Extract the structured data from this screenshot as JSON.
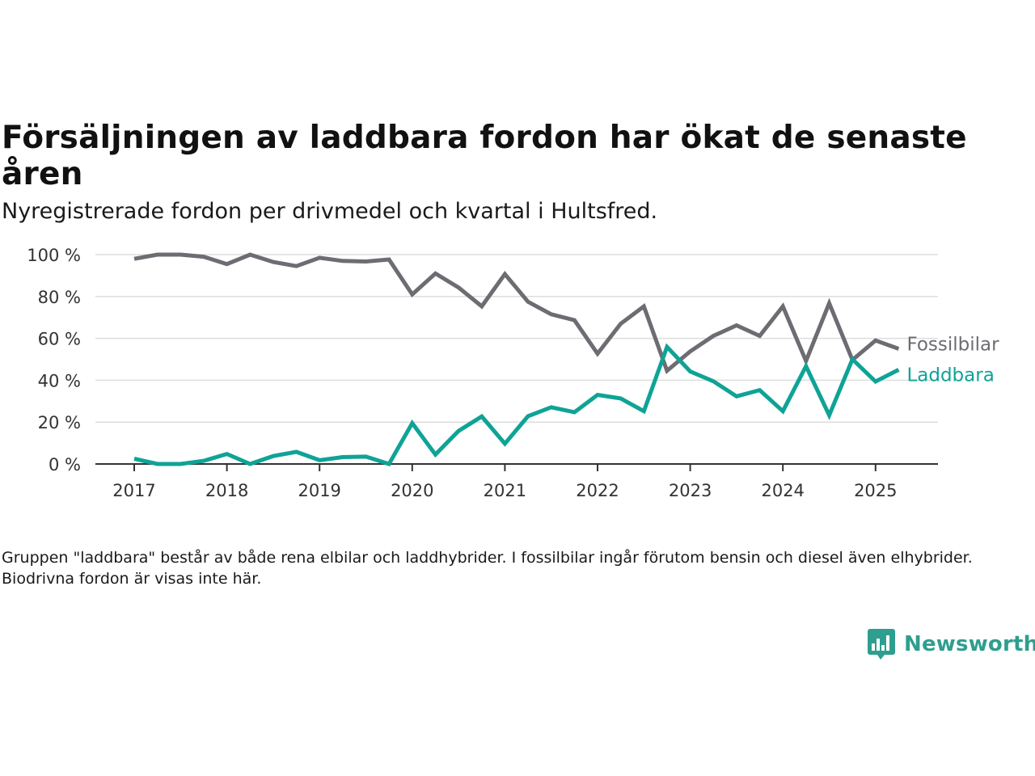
{
  "title": "Försäljningen av laddbara fordon har ökat de senaste åren",
  "subtitle": "Nyregistrerade fordon per drivmedel och kvartal i Hultsfred.",
  "footnote": "Gruppen \"laddbara\" består av både rena elbilar och laddhybrider. I fossilbilar ingår förutom bensin och diesel även elhybrider. Biodrivna fordon är visas inte här.",
  "brand": {
    "name": "Newsworthy",
    "icon": "newsworthy-logo-icon",
    "color": "#2e9e8f"
  },
  "colors": {
    "Fossilbilar": "#6e6c72",
    "Laddbara": "#0fa396",
    "grid": "#dddddd",
    "axis": "#333333"
  },
  "chart_data": {
    "type": "line",
    "x_label_format": "year",
    "x_ticks": [
      "2017",
      "2018",
      "2019",
      "2020",
      "2021",
      "2022",
      "2023",
      "2024",
      "2025"
    ],
    "y_ticks": [
      "0 %",
      "20 %",
      "40 %",
      "60 %",
      "80 %",
      "100 %"
    ],
    "ylim": [
      0,
      100
    ],
    "grid": true,
    "legend": "inline-right",
    "x": [
      "2017-Q1",
      "2017-Q2",
      "2017-Q3",
      "2017-Q4",
      "2018-Q1",
      "2018-Q2",
      "2018-Q3",
      "2018-Q4",
      "2019-Q1",
      "2019-Q2",
      "2019-Q3",
      "2019-Q4",
      "2020-Q1",
      "2020-Q2",
      "2020-Q3",
      "2020-Q4",
      "2021-Q1",
      "2021-Q2",
      "2021-Q3",
      "2021-Q4",
      "2022-Q1",
      "2022-Q2",
      "2022-Q3",
      "2022-Q4",
      "2023-Q1",
      "2023-Q2",
      "2023-Q3",
      "2023-Q4",
      "2024-Q1",
      "2024-Q2",
      "2024-Q3",
      "2024-Q4",
      "2025-Q1",
      "2025-Q2"
    ],
    "series": [
      {
        "name": "Fossilbilar",
        "values": [
          98,
          100,
          100,
          99,
          95.5,
          100,
          96.5,
          94.5,
          98.5,
          97,
          96.7,
          97.7,
          81,
          91,
          84.3,
          75.3,
          90.7,
          77.5,
          71.5,
          68.7,
          52.7,
          67,
          75.3,
          44.5,
          53.8,
          61.2,
          66.2,
          61.2,
          75.3,
          49.2,
          76.8,
          49.7,
          59,
          55
        ]
      },
      {
        "name": "Laddbara",
        "values": [
          2.5,
          0,
          0,
          1.5,
          4.8,
          0,
          3.8,
          5.8,
          1.8,
          3.3,
          3.5,
          0,
          19.5,
          4.5,
          15.8,
          22.7,
          9.7,
          22.8,
          27.1,
          24.7,
          33,
          31.3,
          25.2,
          55.9,
          44.2,
          39.5,
          32.3,
          35.3,
          25.2,
          46.7,
          23.3,
          50,
          39.4,
          45
        ]
      }
    ]
  }
}
